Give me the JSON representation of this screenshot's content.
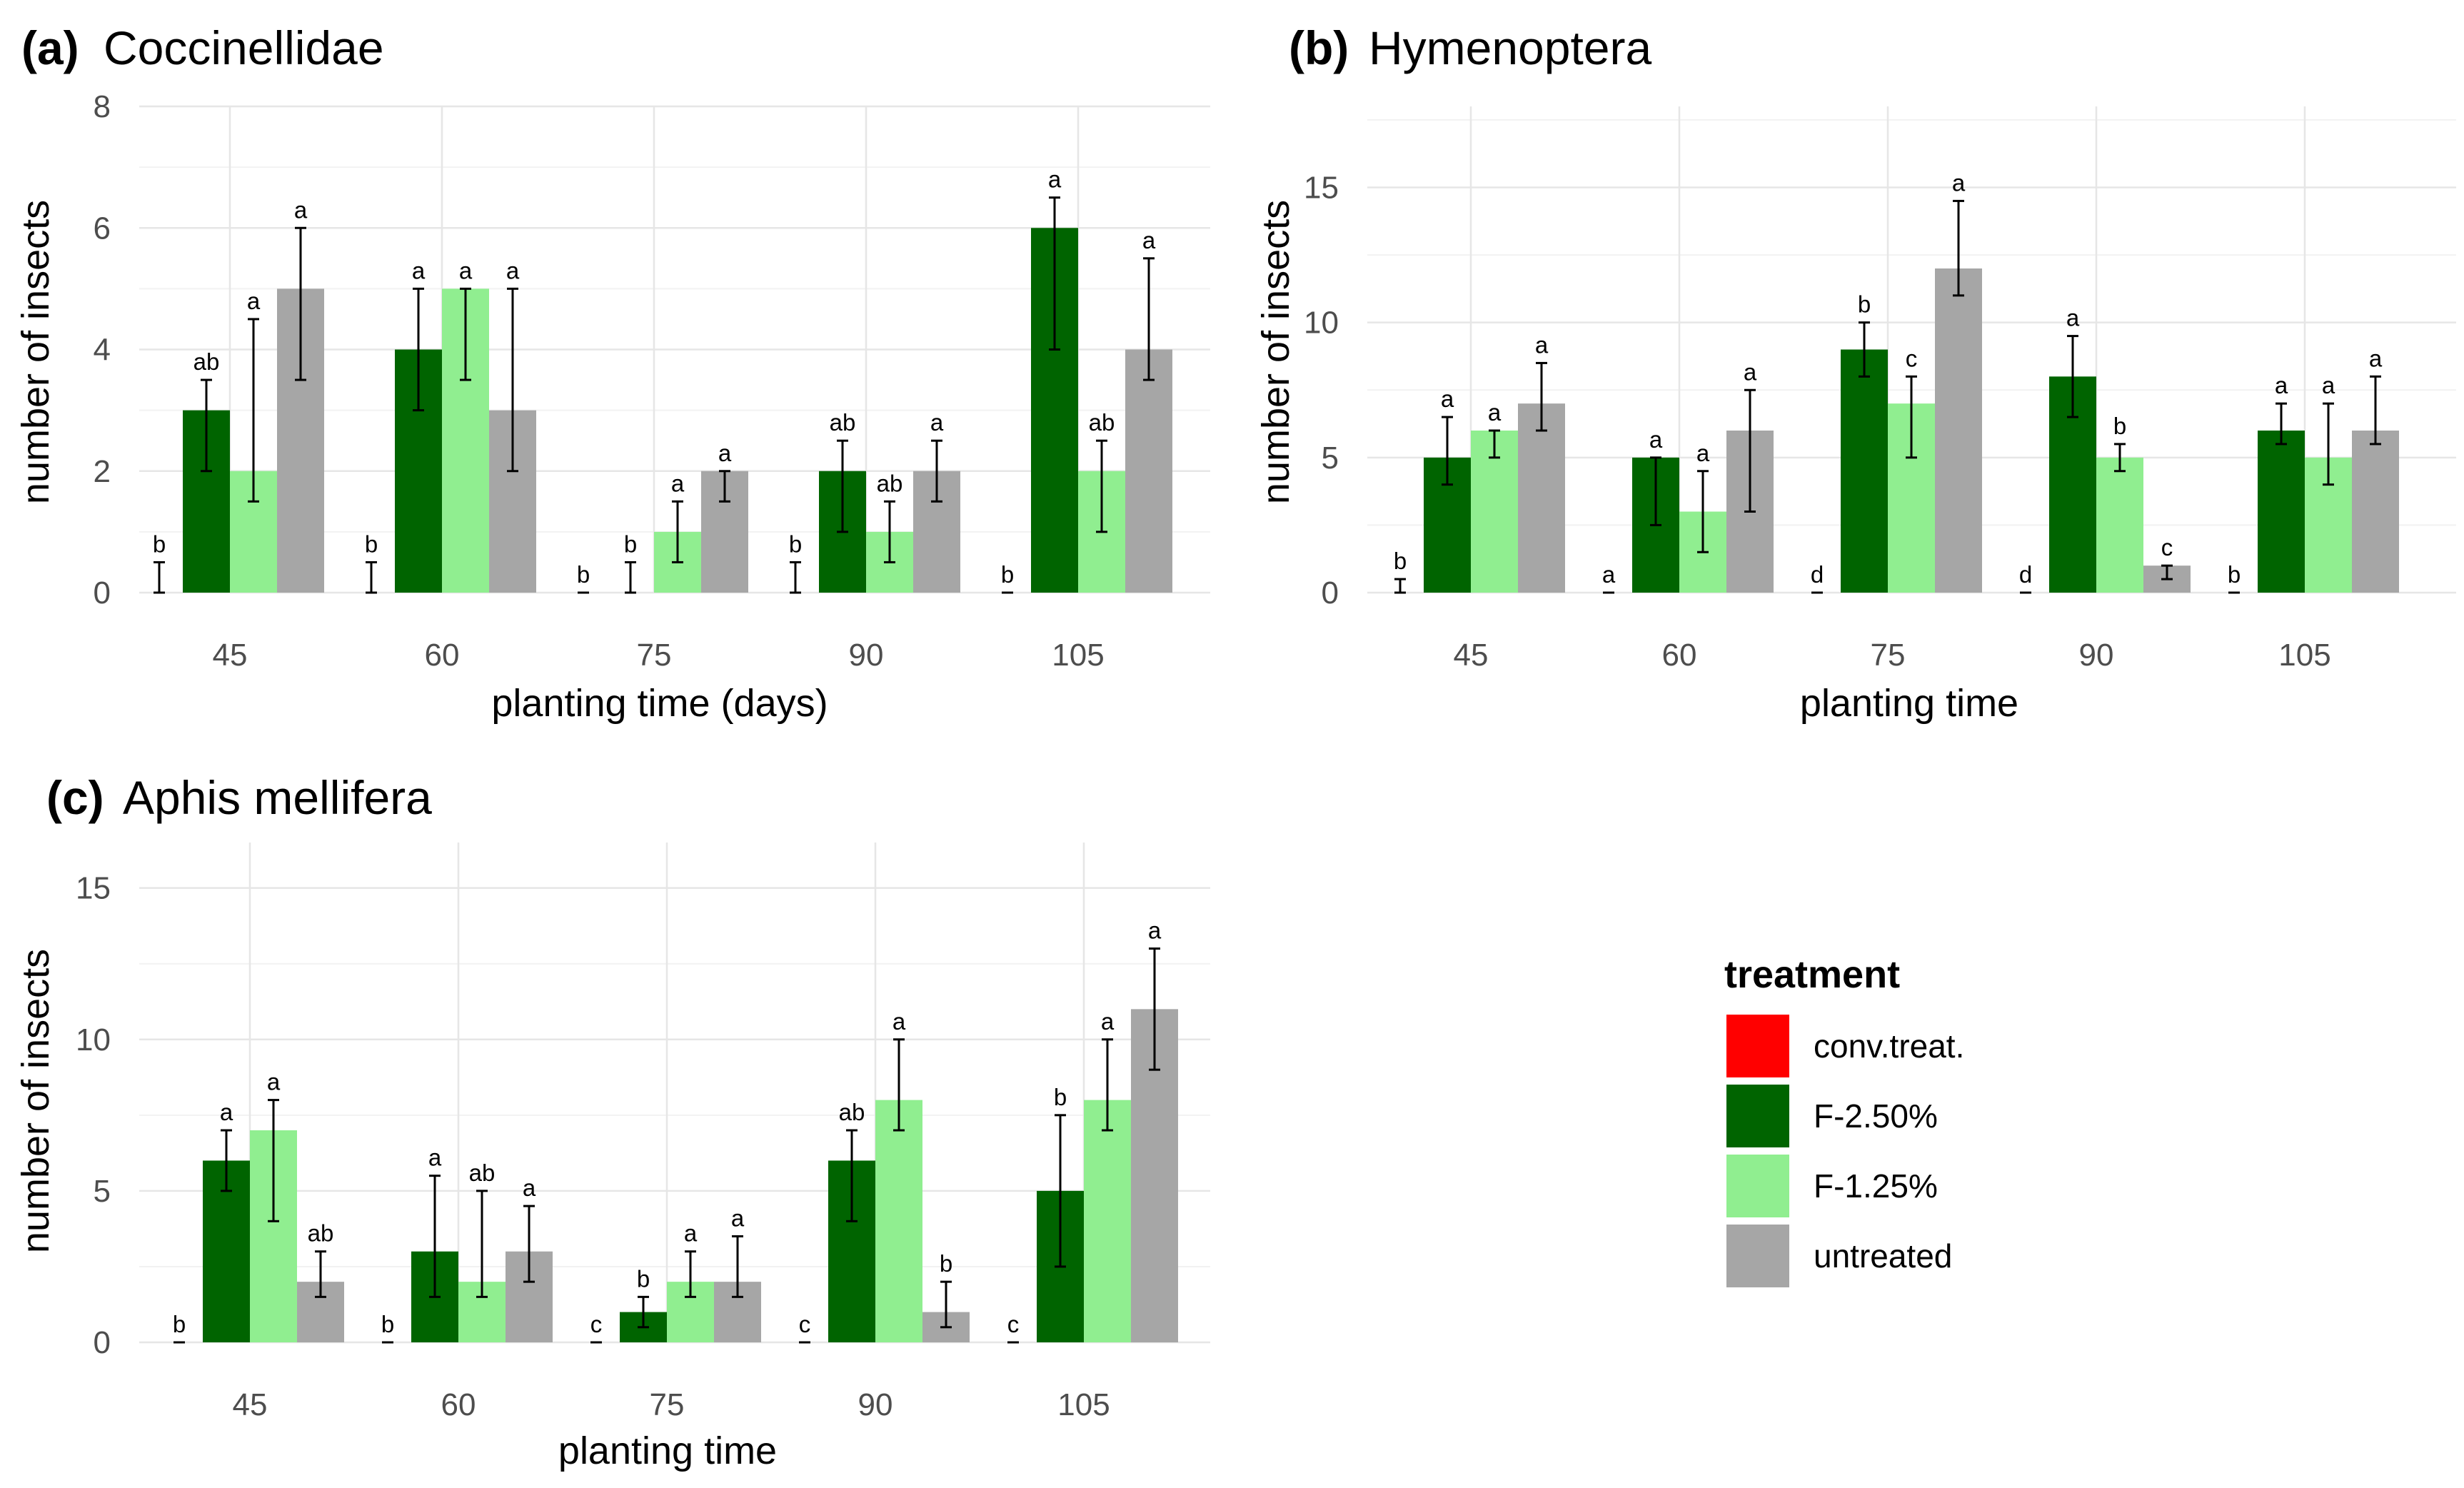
{
  "legend": {
    "title": "treatment",
    "entries": [
      {
        "label": "conv.treat.",
        "color": "#ff0000"
      },
      {
        "label": "F-2.50%",
        "color": "#006400"
      },
      {
        "label": "F-1.25%",
        "color": "#90ee90"
      },
      {
        "label": "untreated",
        "color": "#a6a6a6"
      }
    ]
  },
  "chart_data": [
    {
      "type": "bar",
      "panel_label": "(a)",
      "title": "Coccinellidae",
      "xlabel": "planting time (days)",
      "ylabel": "number of insects",
      "categories": [
        "45",
        "60",
        "75",
        "90",
        "105"
      ],
      "ylim": [
        0,
        8
      ],
      "yticks": [
        0,
        2,
        4,
        6,
        8
      ],
      "series": [
        {
          "name": "conv.treat.",
          "values": [
            0,
            0,
            0,
            0,
            0
          ],
          "err_low": [
            0,
            0,
            0,
            0,
            0
          ],
          "err_high": [
            0.5,
            0.5,
            0,
            0.5,
            0
          ],
          "letters": [
            "b",
            "b",
            "b",
            "b",
            "b"
          ]
        },
        {
          "name": "F-2.50%",
          "values": [
            3,
            4,
            0,
            2,
            6
          ],
          "err_low": [
            2,
            3,
            0,
            1,
            4
          ],
          "err_high": [
            3.5,
            5,
            0.5,
            2.5,
            6.5
          ],
          "letters": [
            "ab",
            "a",
            "b",
            "ab",
            "a"
          ]
        },
        {
          "name": "F-1.25%",
          "values": [
            2,
            5,
            1,
            1,
            2
          ],
          "err_low": [
            1.5,
            3.5,
            0.5,
            0.5,
            1
          ],
          "err_high": [
            4.5,
            5,
            1.5,
            1.5,
            2.5
          ],
          "letters": [
            "a",
            "a",
            "a",
            "ab",
            "ab"
          ]
        },
        {
          "name": "untreated",
          "values": [
            5,
            3,
            2,
            2,
            4
          ],
          "err_low": [
            3.5,
            2,
            1.5,
            1.5,
            3.5
          ],
          "err_high": [
            6,
            5,
            2,
            2.5,
            5.5
          ],
          "letters": [
            "a",
            "a",
            "a",
            "a",
            "a"
          ]
        }
      ]
    },
    {
      "type": "bar",
      "panel_label": "(b)",
      "title": "Hymenoptera",
      "xlabel": "planting time",
      "ylabel": "number of insects",
      "categories": [
        "45",
        "60",
        "75",
        "90",
        "105"
      ],
      "ylim": [
        0,
        18
      ],
      "yticks": [
        0,
        5,
        10,
        15
      ],
      "series": [
        {
          "name": "conv.treat.",
          "values": [
            0,
            0,
            0,
            0,
            0
          ],
          "err_low": [
            0,
            0,
            0,
            0,
            0
          ],
          "err_high": [
            0.5,
            0,
            0,
            0,
            0
          ],
          "letters": [
            "b",
            "a",
            "d",
            "d",
            "b"
          ]
        },
        {
          "name": "F-2.50%",
          "values": [
            5,
            5,
            9,
            8,
            6
          ],
          "err_low": [
            4,
            2.5,
            8,
            6.5,
            5.5
          ],
          "err_high": [
            6.5,
            5,
            10,
            9.5,
            7
          ],
          "letters": [
            "a",
            "a",
            "b",
            "a",
            "a"
          ]
        },
        {
          "name": "F-1.25%",
          "values": [
            6,
            3,
            7,
            5,
            5
          ],
          "err_low": [
            5,
            1.5,
            5,
            4.5,
            4
          ],
          "err_high": [
            6,
            4.5,
            8,
            5.5,
            7
          ],
          "letters": [
            "a",
            "a",
            "c",
            "b",
            "a"
          ]
        },
        {
          "name": "untreated",
          "values": [
            7,
            6,
            12,
            1,
            6
          ],
          "err_low": [
            6,
            3,
            11,
            0.5,
            5.5
          ],
          "err_high": [
            8.5,
            7.5,
            14.5,
            1,
            8
          ],
          "letters": [
            "a",
            "a",
            "a",
            "c",
            "a"
          ]
        }
      ]
    },
    {
      "type": "bar",
      "panel_label": "(c)",
      "title": "Aphis mellifera",
      "xlabel": "planting time",
      "ylabel": "number of insects",
      "categories": [
        "45",
        "60",
        "75",
        "90",
        "105"
      ],
      "ylim": [
        0,
        16.5
      ],
      "yticks": [
        0,
        5,
        10,
        15
      ],
      "series": [
        {
          "name": "conv.treat.",
          "values": [
            0,
            0,
            0,
            0,
            0
          ],
          "err_low": [
            0,
            0,
            0,
            0,
            0
          ],
          "err_high": [
            0,
            0,
            0,
            0,
            0
          ],
          "letters": [
            "b",
            "b",
            "c",
            "c",
            "c"
          ]
        },
        {
          "name": "F-2.50%",
          "values": [
            6,
            3,
            1,
            6,
            5
          ],
          "err_low": [
            5,
            1.5,
            0.5,
            4,
            2.5
          ],
          "err_high": [
            7,
            5.5,
            1.5,
            7,
            7.5
          ],
          "letters": [
            "a",
            "a",
            "b",
            "ab",
            "b"
          ]
        },
        {
          "name": "F-1.25%",
          "values": [
            7,
            2,
            2,
            8,
            8
          ],
          "err_low": [
            4,
            1.5,
            1.5,
            7,
            7
          ],
          "err_high": [
            8,
            5,
            3,
            10,
            10
          ],
          "letters": [
            "a",
            "ab",
            "a",
            "a",
            "a"
          ]
        },
        {
          "name": "untreated",
          "values": [
            2,
            3,
            2,
            1,
            11
          ],
          "err_low": [
            1.5,
            2,
            1.5,
            0.5,
            9
          ],
          "err_high": [
            3,
            4.5,
            3.5,
            2,
            13
          ],
          "letters": [
            "ab",
            "a",
            "a",
            "b",
            "a"
          ]
        }
      ]
    }
  ]
}
